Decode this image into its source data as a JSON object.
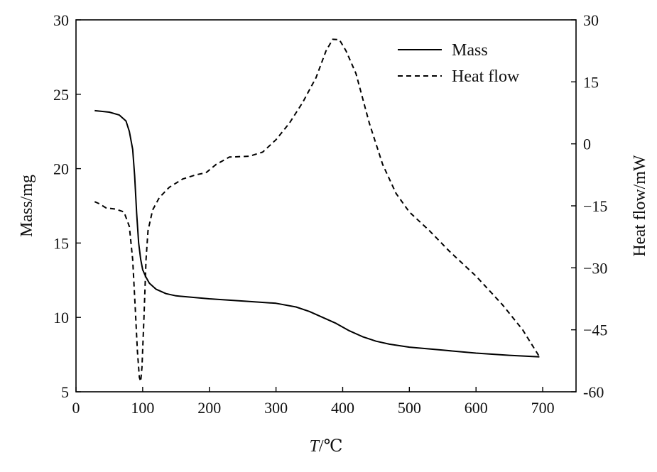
{
  "chart_data": {
    "type": "line",
    "x_axis": {
      "label_italic": "T",
      "label_rest": "/℃",
      "range": [
        0,
        750
      ],
      "ticks": [
        0,
        100,
        200,
        300,
        400,
        500,
        600,
        700
      ],
      "tick_labels": [
        "0",
        "100",
        "200",
        "300",
        "400",
        "500",
        "600",
        "700"
      ]
    },
    "y_left": {
      "label": "Mass/mg",
      "range": [
        5,
        30
      ],
      "ticks": [
        5,
        10,
        15,
        20,
        25,
        30
      ],
      "tick_labels": [
        "5",
        "10",
        "15",
        "20",
        "25",
        "30"
      ]
    },
    "y_right": {
      "label": "Heat flow/mW",
      "range": [
        -60,
        30
      ],
      "ticks": [
        -60,
        -45,
        -30,
        -15,
        0,
        15,
        30
      ],
      "tick_labels": [
        "-60",
        "−45",
        "−30",
        "−15",
        "0",
        "15",
        "30"
      ]
    },
    "legend": {
      "position": "top-right"
    },
    "grid": false,
    "series": [
      {
        "name": "Mass",
        "axis": "left",
        "style": "solid",
        "color": "#000000",
        "points": [
          [
            28,
            23.9
          ],
          [
            50,
            23.8
          ],
          [
            65,
            23.6
          ],
          [
            75,
            23.2
          ],
          [
            80,
            22.5
          ],
          [
            85,
            21.3
          ],
          [
            88,
            19.5
          ],
          [
            91,
            17.0
          ],
          [
            94,
            15.0
          ],
          [
            97,
            13.9
          ],
          [
            100,
            13.2
          ],
          [
            105,
            12.7
          ],
          [
            110,
            12.3
          ],
          [
            120,
            11.9
          ],
          [
            135,
            11.6
          ],
          [
            150,
            11.45
          ],
          [
            200,
            11.25
          ],
          [
            250,
            11.1
          ],
          [
            300,
            10.95
          ],
          [
            330,
            10.7
          ],
          [
            350,
            10.4
          ],
          [
            370,
            10.0
          ],
          [
            390,
            9.6
          ],
          [
            410,
            9.1
          ],
          [
            430,
            8.7
          ],
          [
            450,
            8.4
          ],
          [
            470,
            8.2
          ],
          [
            500,
            8.0
          ],
          [
            550,
            7.8
          ],
          [
            600,
            7.6
          ],
          [
            650,
            7.45
          ],
          [
            695,
            7.35
          ]
        ]
      },
      {
        "name": "Heat flow",
        "axis": "right",
        "style": "dashed",
        "color": "#000000",
        "points": [
          [
            28,
            -14
          ],
          [
            35,
            -14.5
          ],
          [
            45,
            -15.5
          ],
          [
            60,
            -15.8
          ],
          [
            72,
            -16.5
          ],
          [
            80,
            -20
          ],
          [
            85,
            -28
          ],
          [
            89,
            -40
          ],
          [
            92,
            -50
          ],
          [
            95,
            -56.5
          ],
          [
            97,
            -57.5
          ],
          [
            99,
            -54
          ],
          [
            102,
            -42
          ],
          [
            105,
            -28
          ],
          [
            108,
            -21
          ],
          [
            115,
            -16
          ],
          [
            125,
            -13
          ],
          [
            140,
            -10.5
          ],
          [
            160,
            -8.5
          ],
          [
            180,
            -7.5
          ],
          [
            195,
            -7
          ],
          [
            210,
            -5
          ],
          [
            230,
            -3.2
          ],
          [
            260,
            -3
          ],
          [
            280,
            -2
          ],
          [
            300,
            1
          ],
          [
            320,
            5
          ],
          [
            340,
            10
          ],
          [
            360,
            16
          ],
          [
            375,
            22.5
          ],
          [
            385,
            25.3
          ],
          [
            395,
            25.2
          ],
          [
            405,
            22.5
          ],
          [
            420,
            17
          ],
          [
            440,
            5
          ],
          [
            460,
            -5
          ],
          [
            480,
            -12
          ],
          [
            500,
            -16.5
          ],
          [
            530,
            -21
          ],
          [
            560,
            -26
          ],
          [
            600,
            -32
          ],
          [
            640,
            -39
          ],
          [
            670,
            -45
          ],
          [
            695,
            -51.5
          ]
        ]
      }
    ]
  }
}
